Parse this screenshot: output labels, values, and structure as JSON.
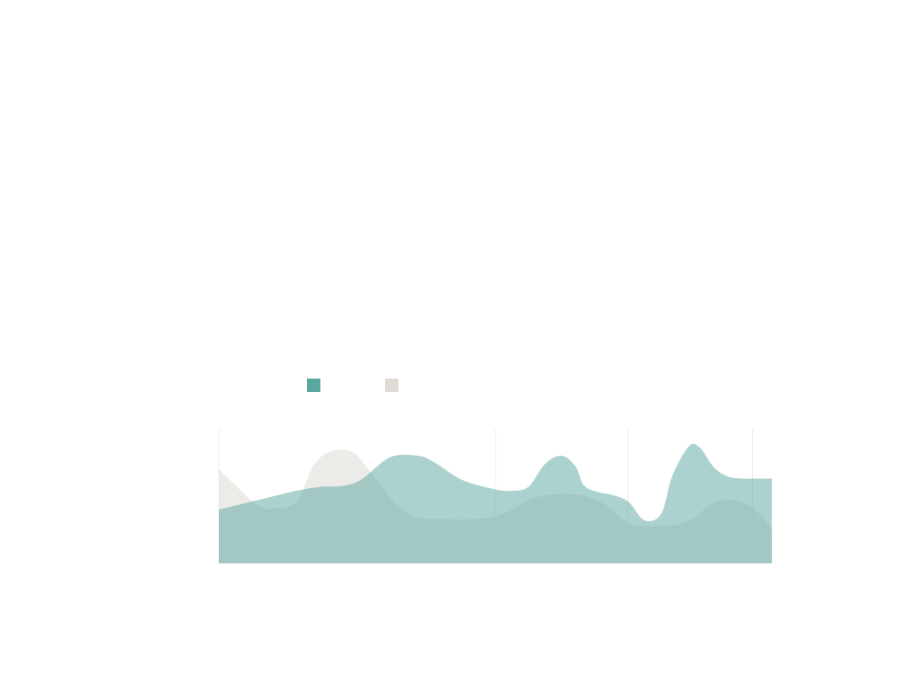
{
  "chart_data": {
    "type": "area",
    "title": "",
    "xlabel": "",
    "ylabel": "",
    "legend_position": "top-left",
    "grid": true,
    "xlim": [
      0,
      100
    ],
    "ylim": [
      0,
      100
    ],
    "series": [
      {
        "name": "",
        "color": "#5aa6a0",
        "opacity": 0.5,
        "x": [
          0,
          3,
          8,
          14,
          18.5,
          20,
          23,
          26,
          31,
          36,
          39,
          44,
          50,
          53,
          56,
          59,
          62,
          64.5,
          66,
          68.5,
          71,
          74,
          77,
          80,
          82,
          85,
          87,
          89,
          90.5,
          92.5,
          95,
          97,
          99,
          100
        ],
        "y": [
          40,
          43,
          48,
          54,
          57,
          57,
          58,
          63,
          79,
          80,
          75,
          62,
          55,
          54,
          57,
          74,
          80,
          72,
          58,
          53,
          51,
          46,
          32,
          37,
          65,
          87,
          86,
          74,
          68,
          64,
          63,
          63,
          63,
          63
        ]
      },
      {
        "name": "",
        "color": "#dedbd4",
        "opacity": 0.55,
        "x": [
          0,
          3,
          7,
          10,
          14,
          17,
          20,
          24,
          27,
          32,
          36,
          40,
          46,
          51,
          56,
          60,
          65,
          69,
          71,
          74,
          77,
          80,
          83,
          86,
          89,
          92,
          95,
          98,
          100
        ],
        "y": [
          70,
          58,
          43,
          41,
          46,
          72,
          83,
          83,
          70,
          44,
          34,
          33,
          33,
          36,
          47,
          51,
          51,
          46,
          40,
          30,
          28,
          28,
          29,
          34,
          44,
          47,
          45,
          36,
          25
        ]
      }
    ]
  }
}
